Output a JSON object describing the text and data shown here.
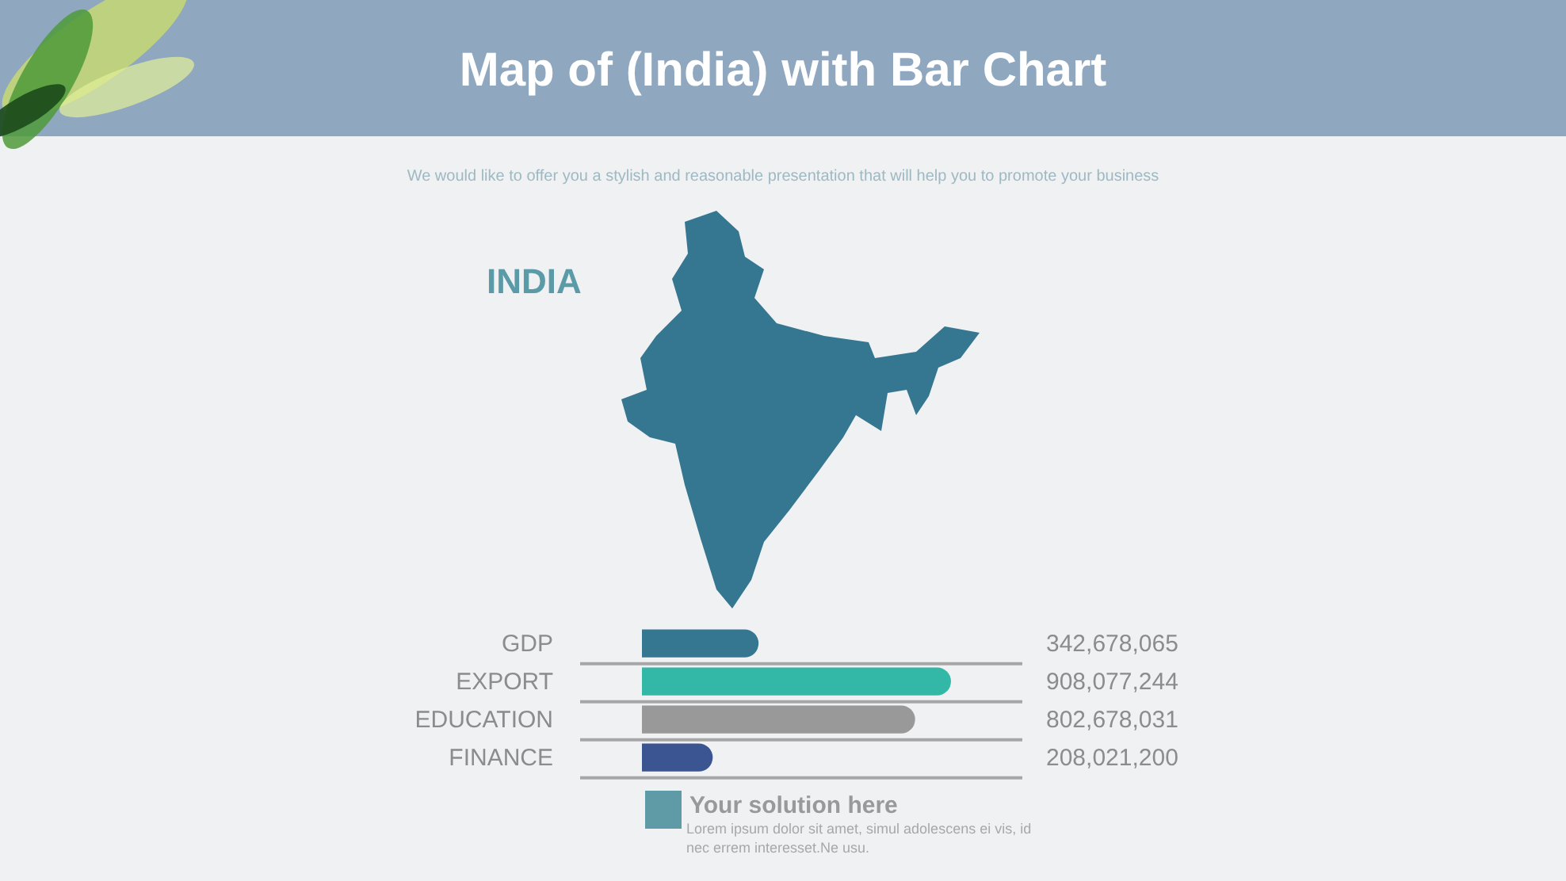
{
  "chart_data": {
    "type": "bar",
    "orientation": "horizontal",
    "title": "Map of (India) with Bar Chart",
    "subtitle": "We would like to offer you a stylish and reasonable presentation that will help you to promote your business",
    "categories": [
      "GDP",
      "EXPORT",
      "EDUCATION",
      "FINANCE"
    ],
    "values": [
      342678065,
      908077244,
      802678031,
      208021200
    ],
    "value_labels": [
      "342,678,065",
      "908,077,244",
      "802,678,031",
      "208,021,200"
    ],
    "colors": [
      "#357691",
      "#33b8a7",
      "#999999",
      "#3b5592"
    ],
    "annotations": [
      "INDIA",
      "Your solution here",
      "Lorem ipsum dolor sit amet, simul adolescens ei vis, id nec errem interesset.Ne usu."
    ]
  }
}
